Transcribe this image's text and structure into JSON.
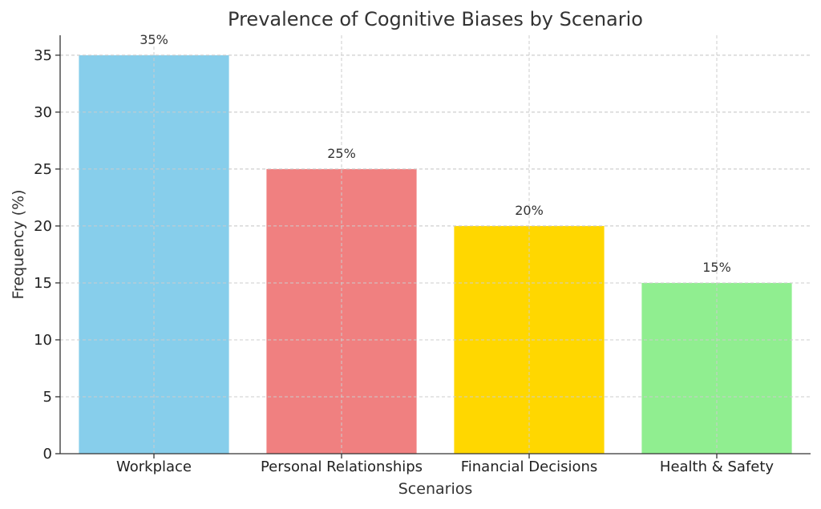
{
  "chart_data": {
    "type": "bar",
    "title": "Prevalence of Cognitive Biases by Scenario",
    "xlabel": "Scenarios",
    "ylabel": "Frequency (%)",
    "categories": [
      "Workplace",
      "Personal Relationships",
      "Financial Decisions",
      "Health & Safety"
    ],
    "values": [
      35,
      25,
      20,
      15
    ],
    "value_labels": [
      "35%",
      "25%",
      "20%",
      "15%"
    ],
    "colors": [
      "#87CEEB",
      "#F08080",
      "#FFD700",
      "#90EE90"
    ],
    "ylim": [
      0,
      36.75
    ],
    "yticks": [
      0,
      5,
      10,
      15,
      20,
      25,
      30,
      35
    ],
    "grid": true
  }
}
